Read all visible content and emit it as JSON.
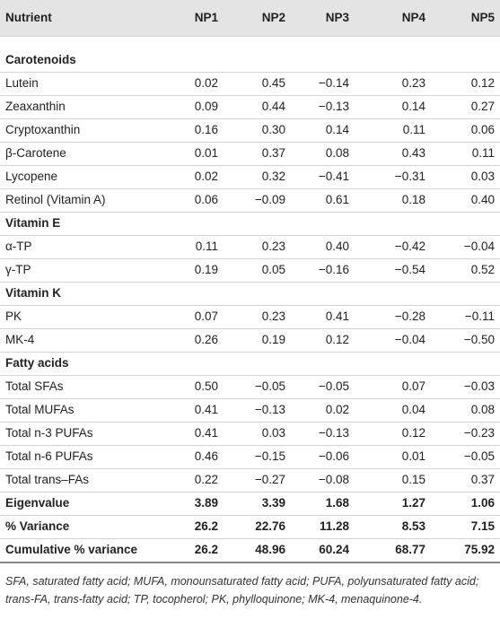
{
  "table": {
    "header": [
      "Nutrient",
      "NP1",
      "NP2",
      "NP3",
      "NP4",
      "NP5"
    ],
    "rows": [
      {
        "kind": "heading",
        "cells": [
          "Carotenoids"
        ]
      },
      {
        "kind": "data",
        "cells": [
          "Lutein",
          "0.02",
          "0.45",
          "−0.14",
          "0.23",
          "0.12"
        ]
      },
      {
        "kind": "data",
        "cells": [
          "Zeaxanthin",
          "0.09",
          "0.44",
          "−0.13",
          "0.14",
          "0.27"
        ]
      },
      {
        "kind": "data",
        "cells": [
          "Cryptoxanthin",
          "0.16",
          "0.30",
          "0.14",
          "0.11",
          "0.06"
        ]
      },
      {
        "kind": "data",
        "cells": [
          "β-Carotene",
          "0.01",
          "0.37",
          "0.08",
          "0.43",
          "0.11"
        ]
      },
      {
        "kind": "data",
        "cells": [
          "Lycopene",
          "0.02",
          "0.32",
          "−0.41",
          "−0.31",
          "0.03"
        ]
      },
      {
        "kind": "data",
        "cells": [
          "Retinol (Vitamin A)",
          "0.06",
          "−0.09",
          "0.61",
          "0.18",
          "0.40"
        ]
      },
      {
        "kind": "heading",
        "cells": [
          "Vitamin E"
        ]
      },
      {
        "kind": "data",
        "cells": [
          "α-TP",
          "0.11",
          "0.23",
          "0.40",
          "−0.42",
          "−0.04"
        ]
      },
      {
        "kind": "data",
        "cells": [
          "γ-TP",
          "0.19",
          "0.05",
          "−0.16",
          "−0.54",
          "0.52"
        ]
      },
      {
        "kind": "heading",
        "cells": [
          "Vitamin K"
        ]
      },
      {
        "kind": "data",
        "cells": [
          "PK",
          "0.07",
          "0.23",
          "0.41",
          "−0.28",
          "−0.11"
        ]
      },
      {
        "kind": "data",
        "cells": [
          "MK-4",
          "0.26",
          "0.19",
          "0.12",
          "−0.04",
          "−0.50"
        ]
      },
      {
        "kind": "heading",
        "cells": [
          "Fatty acids"
        ]
      },
      {
        "kind": "data",
        "cells": [
          "Total SFAs",
          "0.50",
          "−0.05",
          "−0.05",
          "0.07",
          "−0.03"
        ]
      },
      {
        "kind": "data",
        "cells": [
          "Total MUFAs",
          "0.41",
          "−0.13",
          "0.02",
          "0.04",
          "0.08"
        ]
      },
      {
        "kind": "data",
        "cells": [
          "Total n-3 PUFAs",
          "0.41",
          "0.03",
          "−0.13",
          "0.12",
          "−0.23"
        ]
      },
      {
        "kind": "data",
        "cells": [
          "Total n-6 PUFAs",
          "0.46",
          "−0.15",
          "−0.06",
          "0.01",
          "−0.05"
        ]
      },
      {
        "kind": "data",
        "cells": [
          "Total trans–FAs",
          "0.22",
          "−0.27",
          "−0.08",
          "0.15",
          "0.37"
        ]
      },
      {
        "kind": "summary",
        "cells": [
          "Eigenvalue",
          "3.89",
          "3.39",
          "1.68",
          "1.27",
          "1.06"
        ]
      },
      {
        "kind": "summary",
        "cells": [
          "% Variance",
          "26.2",
          "22.76",
          "11.28",
          "8.53",
          "7.15"
        ]
      },
      {
        "kind": "summary",
        "cells": [
          "Cumulative % variance",
          "26.2",
          "48.96",
          "60.24",
          "68.77",
          "75.92"
        ]
      }
    ],
    "footnote": "SFA, saturated fatty acid; MUFA, monounsaturated fatty acid; PUFA, polyunsaturated fatty acid; trans-FA, trans-fatty acid; TP, tocopherol; PK, phylloquinone; MK-4, menaquinone-4."
  }
}
